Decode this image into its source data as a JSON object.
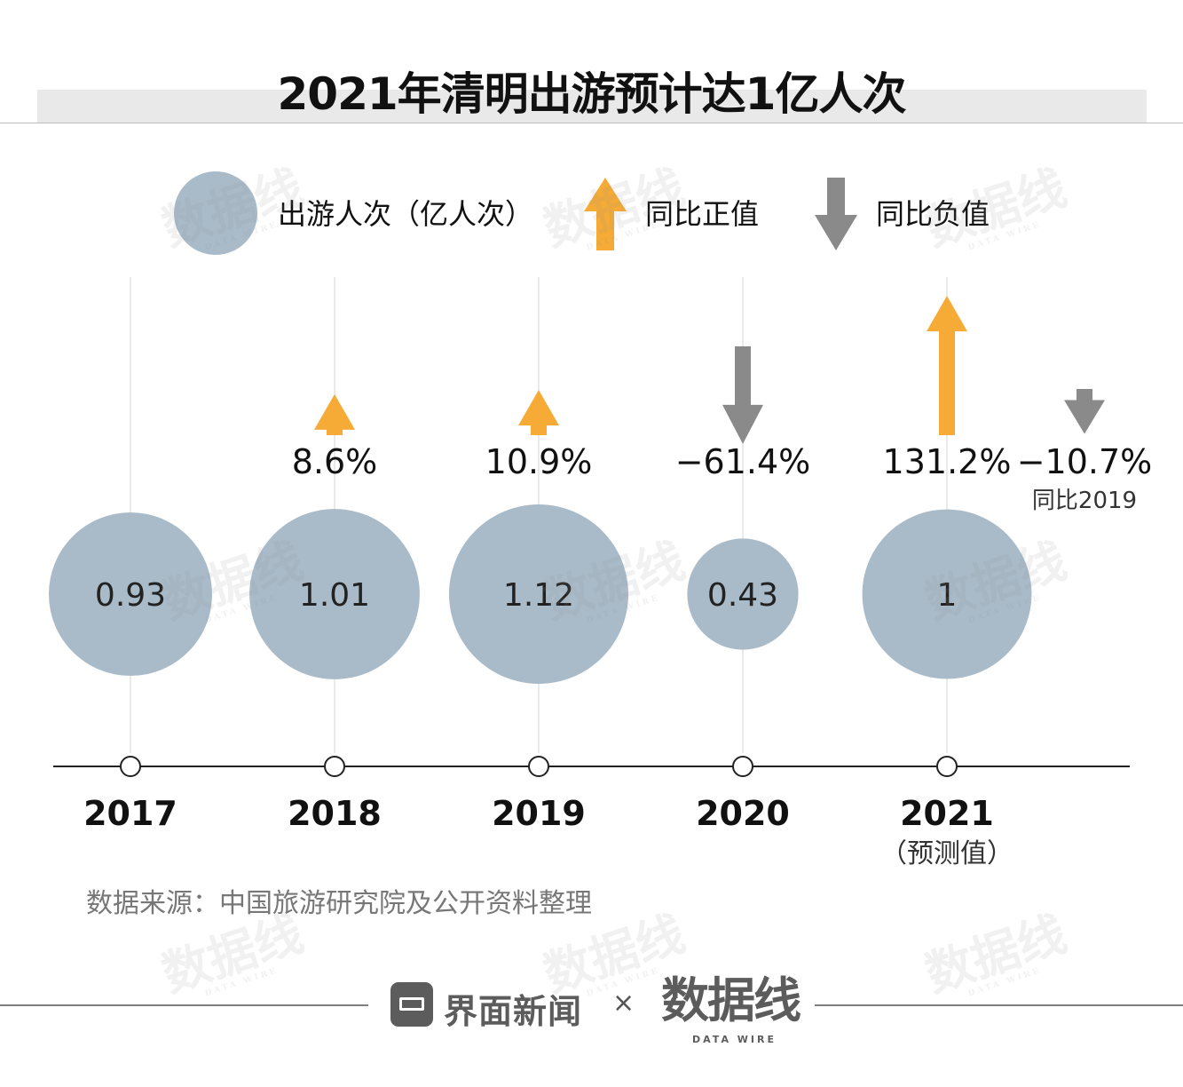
{
  "chart_data": {
    "type": "bubble-timeline",
    "title": "2021年清明出游预计达1亿人次",
    "legend": [
      {
        "key": "bubble",
        "label": "出游人次（亿人次）",
        "color": "#a9bbc9",
        "icon": "circle-icon"
      },
      {
        "key": "up",
        "label": "同比正值",
        "color": "#f5ab35",
        "icon": "arrow-up-icon"
      },
      {
        "key": "down",
        "label": "同比负值",
        "color": "#8a8a8a",
        "icon": "arrow-down-icon"
      }
    ],
    "categories": [
      "2017",
      "2018",
      "2019",
      "2020",
      "2021"
    ],
    "category_notes": [
      "",
      "",
      "",
      "",
      "（预测值）"
    ],
    "series": [
      {
        "name": "出游人次（亿人次）",
        "values": [
          0.93,
          1.01,
          1.12,
          0.43,
          1
        ],
        "labels": [
          "0.93",
          "1.01",
          "1.12",
          "0.43",
          "1"
        ]
      }
    ],
    "yoy_change": [
      {
        "x": "2018",
        "value": 8.6,
        "label": "8.6%"
      },
      {
        "x": "2019",
        "value": 10.9,
        "label": "10.9%"
      },
      {
        "x": "2020",
        "value": -61.4,
        "label": "−61.4%"
      },
      {
        "x": "2021",
        "value": 131.2,
        "label": "131.2%"
      }
    ],
    "extra_change": {
      "value": -10.7,
      "label": "−10.7%",
      "note": "同比2019"
    },
    "source": "数据来源：中国旅游研究院及公开资料整理"
  },
  "footer": {
    "brand": "界面新闻",
    "times": "×",
    "partner": "数据线",
    "partner_sub": "DATA WIRE",
    "logo_icon": "jiemian-logo-icon"
  },
  "colors": {
    "bubble": "#a9bbc9",
    "up": "#f5ab35",
    "down": "#8a8a8a",
    "axis": "#222222",
    "gridline": "#d6d6d6",
    "text": "#111111",
    "source": "#777777"
  }
}
